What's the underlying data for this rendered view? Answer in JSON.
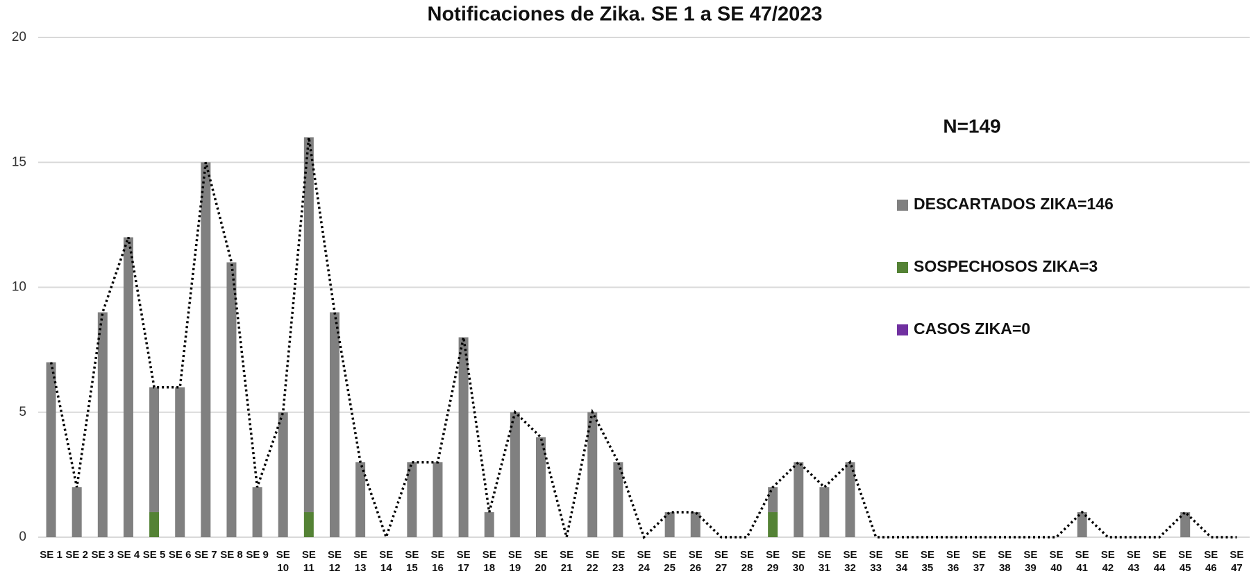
{
  "chart_data": {
    "type": "bar",
    "title": "Notificaciones de Zika. SE 1 a SE 47/2023",
    "annotation": "N=149",
    "categories": [
      "SE 1",
      "SE 2",
      "SE 3",
      "SE 4",
      "SE 5",
      "SE 6",
      "SE 7",
      "SE 8",
      "SE 9",
      "SE 10",
      "SE 11",
      "SE 12",
      "SE 13",
      "SE 14",
      "SE 15",
      "SE 16",
      "SE 17",
      "SE 18",
      "SE 19",
      "SE 20",
      "SE 21",
      "SE 22",
      "SE 23",
      "SE 24",
      "SE 25",
      "SE 26",
      "SE 27",
      "SE 28",
      "SE 29",
      "SE 30",
      "SE 31",
      "SE 32",
      "SE 33",
      "SE 34",
      "SE 35",
      "SE 36",
      "SE 37",
      "SE 38",
      "SE 39",
      "SE 40",
      "SE 41",
      "SE 42",
      "SE 43",
      "SE 44",
      "SE 45",
      "SE 46",
      "SE 47"
    ],
    "series": [
      {
        "name": "DESCARTADOS ZIKA=146",
        "color": "#808080",
        "values": [
          7,
          2,
          9,
          12,
          5,
          6,
          15,
          11,
          2,
          5,
          15,
          9,
          3,
          0,
          3,
          3,
          8,
          1,
          5,
          4,
          0,
          5,
          3,
          0,
          1,
          1,
          0,
          0,
          1,
          3,
          2,
          3,
          0,
          0,
          0,
          0,
          0,
          0,
          0,
          0,
          1,
          0,
          0,
          0,
          1,
          0,
          0
        ]
      },
      {
        "name": "SOSPECHOSOS ZIKA=3",
        "color": "#548235",
        "values": [
          0,
          0,
          0,
          0,
          1,
          0,
          0,
          0,
          0,
          0,
          1,
          0,
          0,
          0,
          0,
          0,
          0,
          0,
          0,
          0,
          0,
          0,
          0,
          0,
          0,
          0,
          0,
          0,
          1,
          0,
          0,
          0,
          0,
          0,
          0,
          0,
          0,
          0,
          0,
          0,
          0,
          0,
          0,
          0,
          0,
          0,
          0
        ]
      },
      {
        "name": "CASOS ZIKA=0",
        "color": "#7030a0",
        "values": [
          0,
          0,
          0,
          0,
          0,
          0,
          0,
          0,
          0,
          0,
          0,
          0,
          0,
          0,
          0,
          0,
          0,
          0,
          0,
          0,
          0,
          0,
          0,
          0,
          0,
          0,
          0,
          0,
          0,
          0,
          0,
          0,
          0,
          0,
          0,
          0,
          0,
          0,
          0,
          0,
          0,
          0,
          0,
          0,
          0,
          0,
          0
        ]
      }
    ],
    "line": {
      "color": "#000000",
      "values": [
        7,
        2,
        9,
        12,
        6,
        6,
        15,
        11,
        2,
        5,
        16,
        9,
        3,
        0,
        3,
        3,
        8,
        1,
        5,
        4,
        0,
        5,
        3,
        0,
        1,
        1,
        0,
        0,
        2,
        3,
        2,
        3,
        0,
        0,
        0,
        0,
        0,
        0,
        0,
        0,
        1,
        0,
        0,
        0,
        1,
        0,
        0
      ]
    },
    "ylim": [
      0,
      20
    ],
    "yticks": [
      0,
      5,
      10,
      15,
      20
    ],
    "grid": true
  }
}
